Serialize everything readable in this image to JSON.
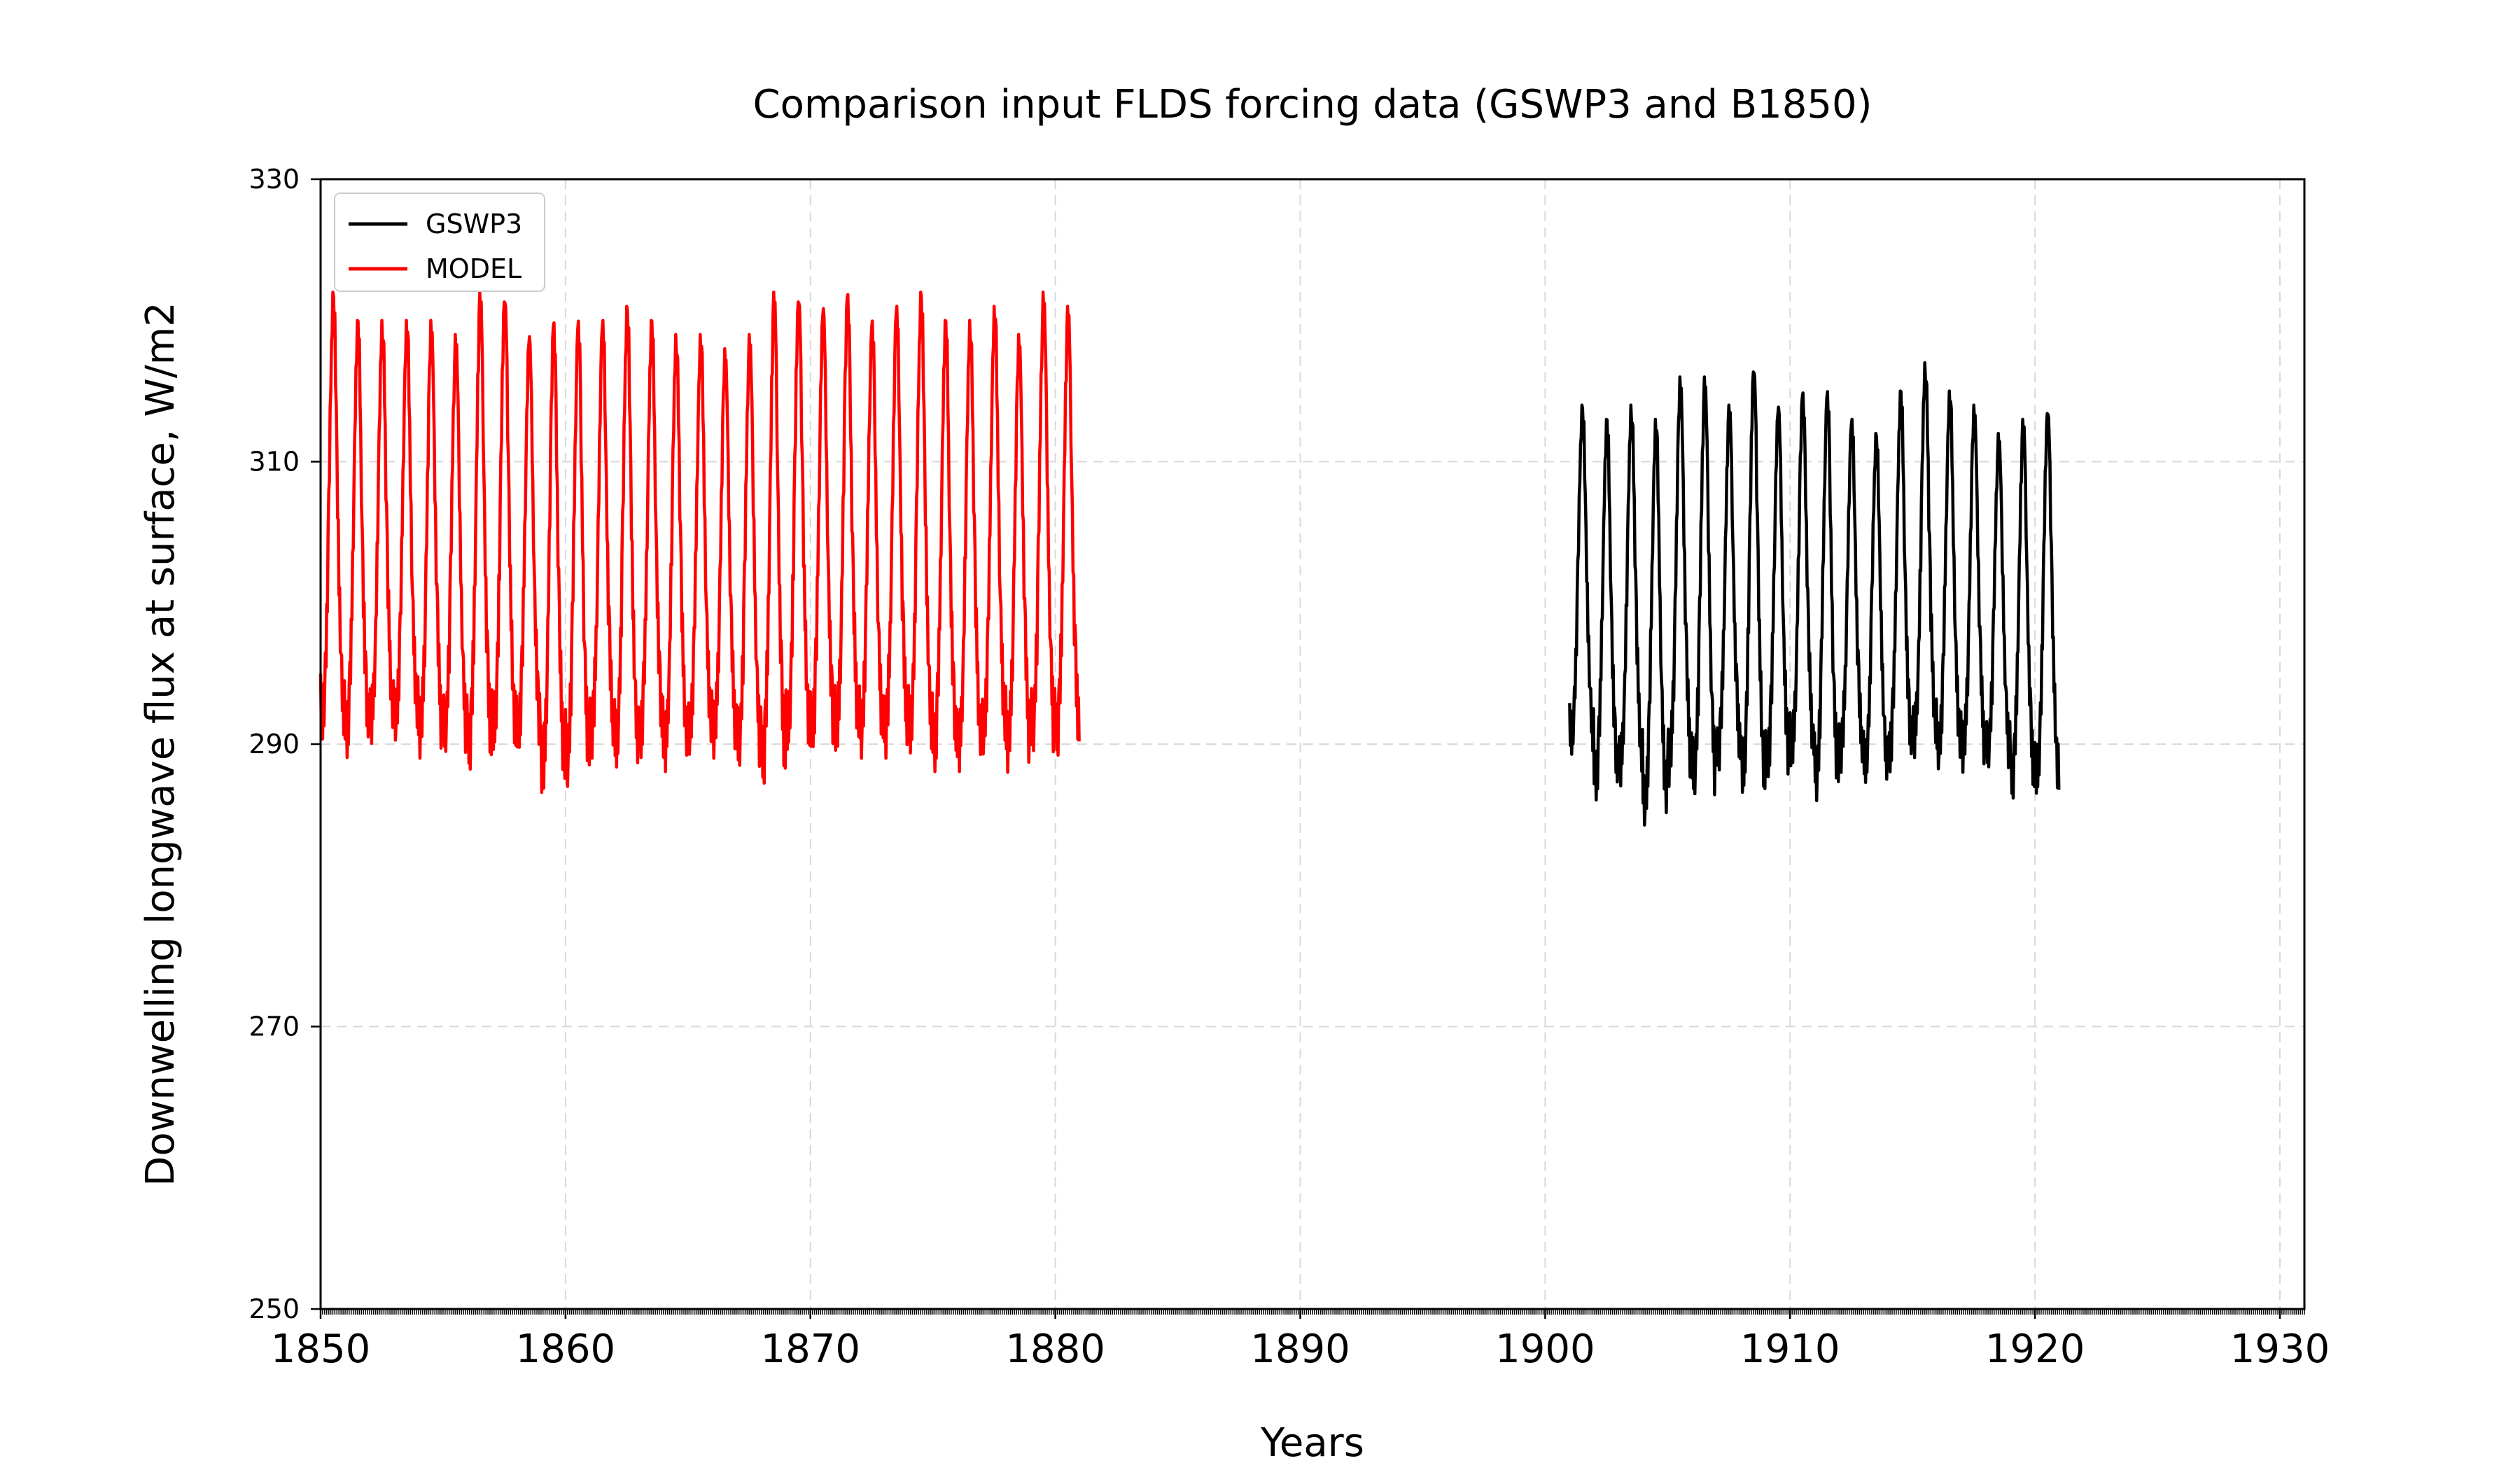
{
  "chart_data": {
    "type": "line",
    "title": "Comparison input FLDS forcing data (GSWP3 and B1850)",
    "xlabel": "Years",
    "ylabel": "Downwelling longwave flux at surface, W/m2",
    "xlim": [
      1850,
      1931
    ],
    "ylim": [
      250,
      330
    ],
    "xticks": [
      1850,
      1860,
      1870,
      1880,
      1890,
      1900,
      1910,
      1920,
      1930
    ],
    "yticks": [
      250,
      270,
      290,
      310,
      330
    ],
    "grid": true,
    "legend_position": "top-left",
    "series": [
      {
        "name": "GSWP3",
        "color": "#000000",
        "x_range": [
          1901,
          1921
        ],
        "annual_peaks": [
          314,
          313,
          314,
          313,
          316,
          316,
          314,
          317,
          314,
          315,
          315,
          313,
          312,
          315,
          317,
          315,
          314,
          312,
          313,
          314
        ],
        "annual_troughs": [
          289,
          286,
          287,
          284,
          287,
          286,
          288,
          286,
          287,
          288,
          286,
          288,
          287,
          288,
          289,
          288,
          288,
          288,
          286,
          286
        ]
      },
      {
        "name": "MODEL",
        "color": "#ff0000",
        "x_range": [
          1850,
          1881
        ],
        "annual_peaks": [
          322,
          320,
          320,
          320,
          320,
          319,
          322,
          322,
          319,
          320,
          320,
          320,
          321,
          320,
          319,
          319,
          318,
          319,
          322,
          322,
          321,
          322,
          320,
          321,
          322,
          320,
          320,
          321,
          319,
          322,
          321
        ],
        "annual_troughs": [
          290,
          289,
          290,
          290,
          289,
          289,
          288,
          289,
          289,
          286,
          287,
          289,
          288,
          289,
          288,
          289,
          289,
          288,
          287,
          289,
          289,
          289,
          289,
          289,
          289,
          288,
          288,
          289,
          288,
          289,
          289
        ]
      }
    ]
  }
}
